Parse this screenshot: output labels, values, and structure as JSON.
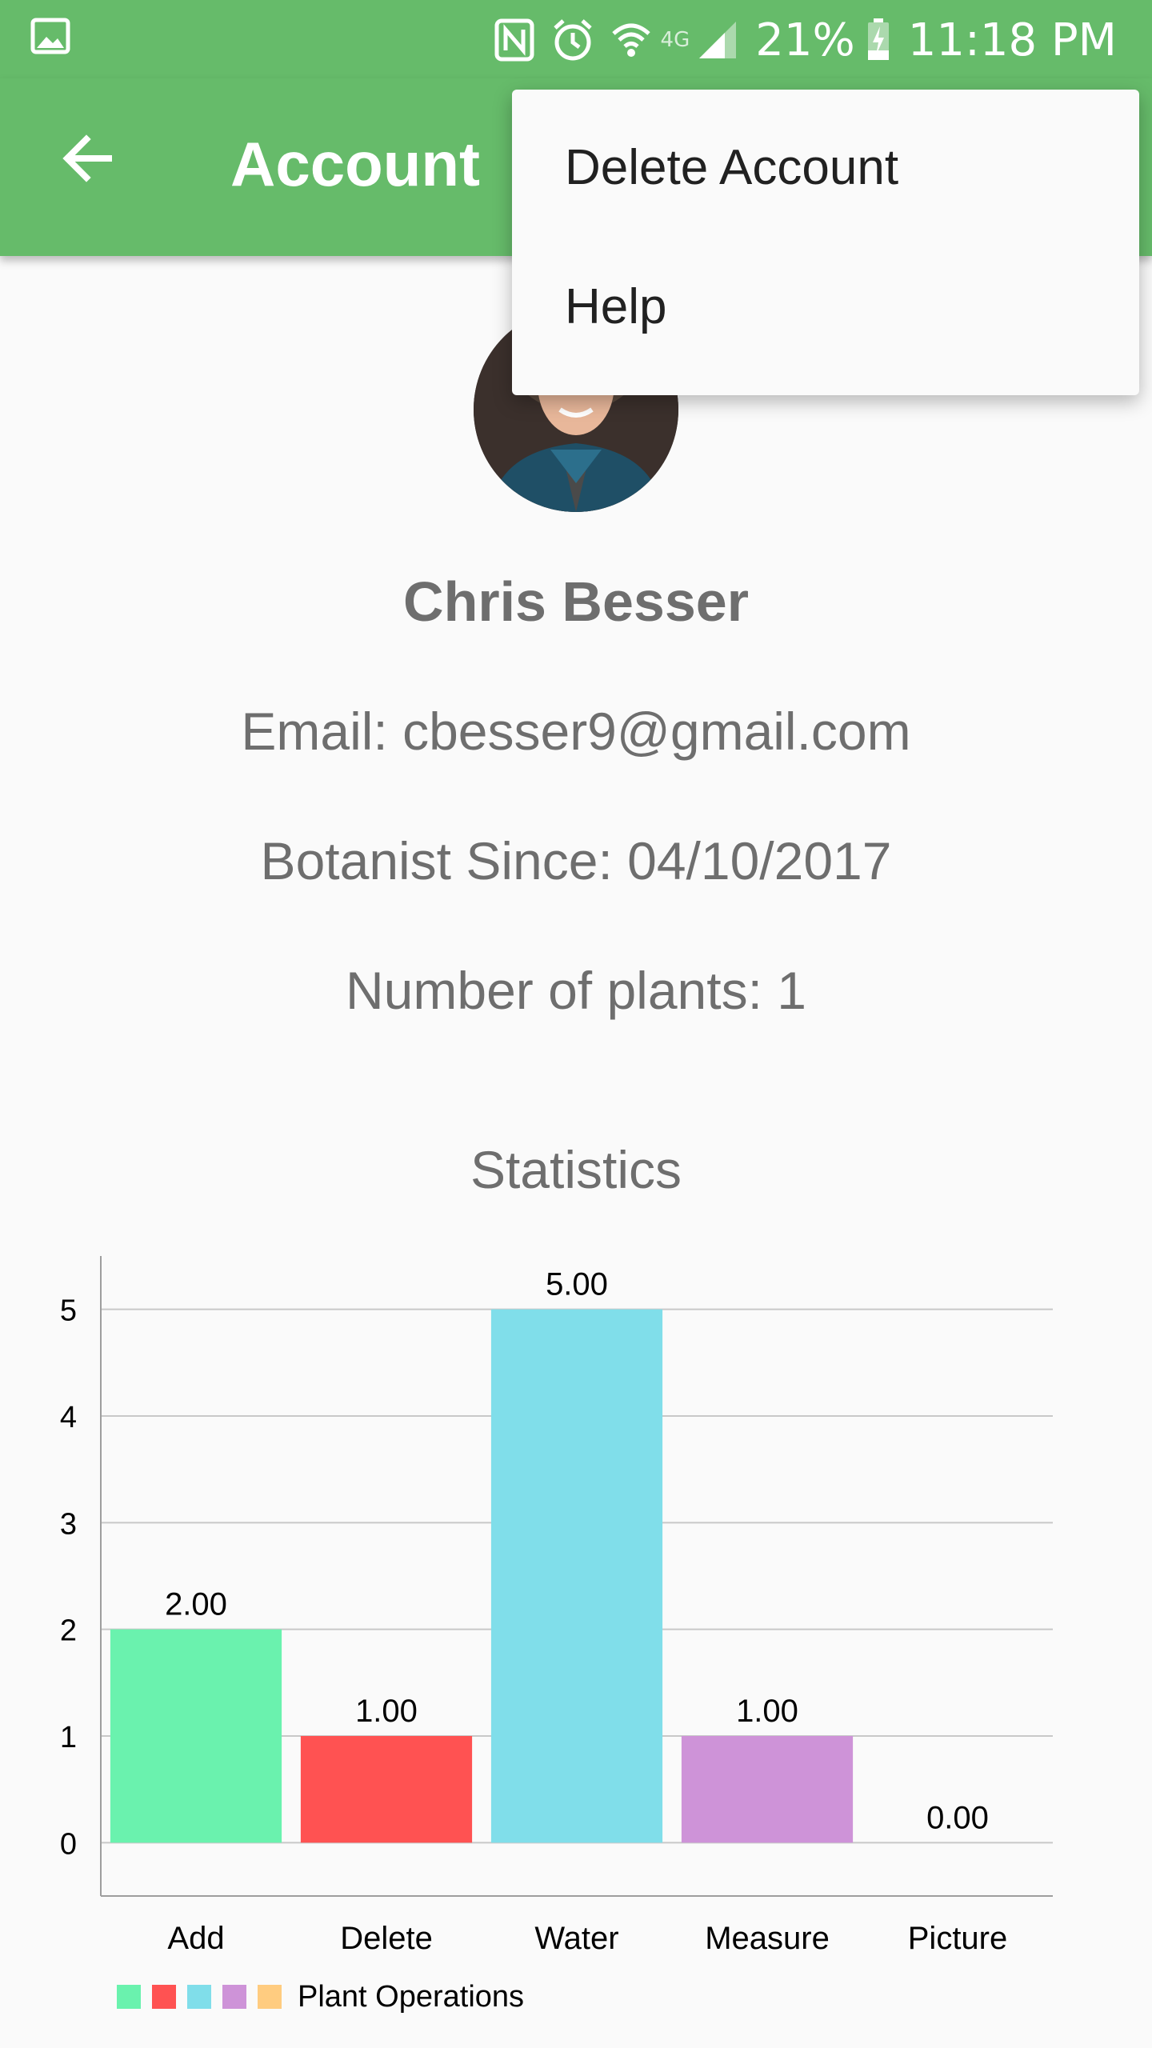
{
  "status_bar": {
    "battery": "21%",
    "time": "11:18 PM",
    "network_label": "4G",
    "icons": [
      "gallery-icon",
      "nfc-icon",
      "alarm-icon",
      "wifi-icon",
      "signal-icon",
      "battery-charging-icon"
    ]
  },
  "app_bar": {
    "title": "Account",
    "back_icon": "arrow-back-icon",
    "color": "#66bb6a"
  },
  "menu": {
    "items": [
      {
        "label": "Delete Account"
      },
      {
        "label": "Help"
      }
    ]
  },
  "profile": {
    "name": "Chris Besser",
    "email": "Email: cbesser9@gmail.com",
    "botanist_since": "Botanist Since: 04/10/2017",
    "number_of_plants": "Number of plants: 1"
  },
  "statistics": {
    "title": "Statistics"
  },
  "chart_data": {
    "type": "bar",
    "categories": [
      "Add",
      "Delete",
      "Water",
      "Measure",
      "Picture"
    ],
    "values": [
      2,
      1,
      5,
      1,
      0
    ],
    "value_labels": [
      "2.00",
      "1.00",
      "5.00",
      "1.00",
      "0.00"
    ],
    "colors": [
      "#6af2ae",
      "#ff5252",
      "#80deea",
      "#ce93d8",
      "#ffcc80"
    ],
    "legend": "Plant Operations",
    "legend_placement": "bottom-left",
    "y_ticks": [
      "0",
      "1",
      "2",
      "3",
      "4",
      "5"
    ],
    "ylim": [
      -0.5,
      5.5
    ],
    "grid": true
  }
}
